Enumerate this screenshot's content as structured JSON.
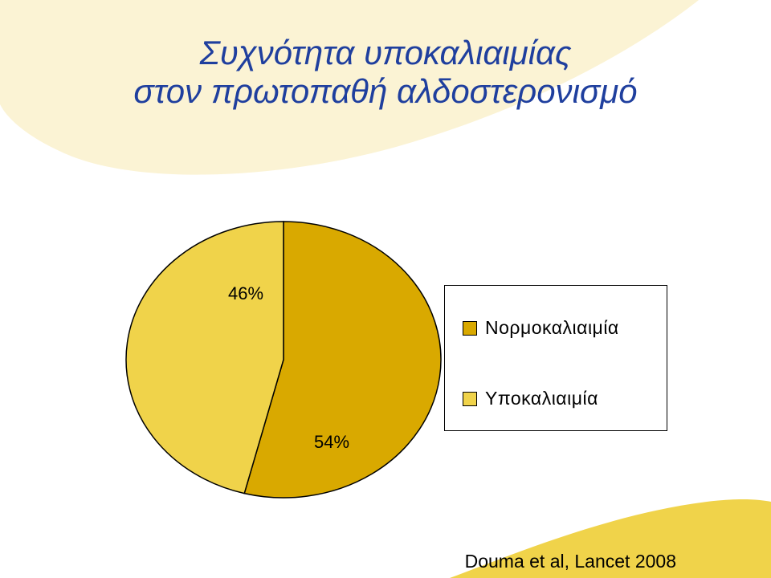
{
  "header": {
    "title_line1": "Συχνότητα υποκαλιαιμίας",
    "title_line2": "στον πρωτοπαθή αλδοστερονισμό"
  },
  "chart_data": {
    "type": "pie",
    "slices": [
      {
        "name": "Νορμοκαλιαιμία",
        "value": 54,
        "label": "54%",
        "color": "#D9A900"
      },
      {
        "name": "Υποκαλιαιμία",
        "value": 46,
        "label": "46%",
        "color": "#F0D34A"
      }
    ],
    "legend_position": "right"
  },
  "footer": {
    "citation": "Douma et al, Lancet 2008"
  },
  "colors": {
    "title": "#1f3f9e",
    "background_shape": "#FBF3D4",
    "accent_shape": "#F0D34A"
  }
}
